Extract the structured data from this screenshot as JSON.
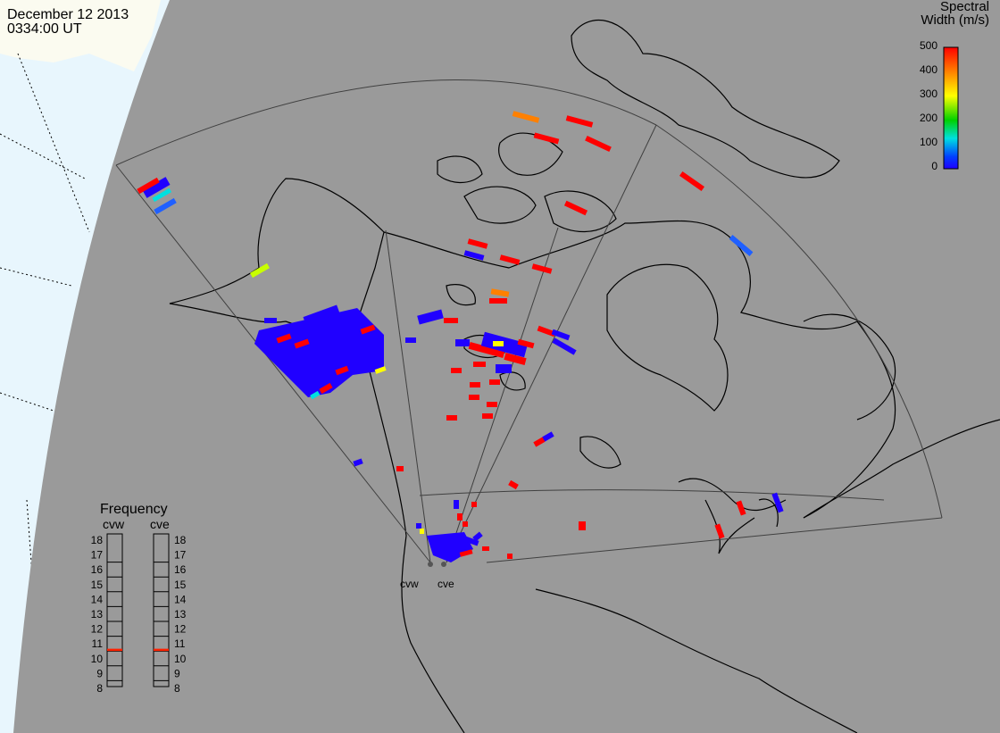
{
  "header": {
    "date": "December 12 2013",
    "time": "0334:00 UT"
  },
  "colorbar": {
    "title_line1": "Spectral",
    "title_line2": "Width (m/s)",
    "ticks": [
      "500",
      "400",
      "300",
      "200",
      "100",
      "0"
    ],
    "colors": [
      "#ff0000",
      "#ff8000",
      "#ffff00",
      "#00d000",
      "#00e0e0",
      "#0040ff",
      "#2000ff"
    ]
  },
  "frequency_panel": {
    "title": "Frequency",
    "radars": [
      "cvw",
      "cve"
    ],
    "scale": [
      "18",
      "17",
      "16",
      "15",
      "14",
      "13",
      "12",
      "11",
      "10",
      "9",
      "8"
    ],
    "cvw_mhz": 10.6,
    "cve_mhz": 10.6,
    "marker_color": "#ff2000"
  },
  "site_labels": [
    "cvw",
    "cve"
  ],
  "colors": {
    "land": "#9a9a9a",
    "ocean": "#e8f6fd",
    "polar_land": "#fbfbf0",
    "fov_line": "#404040",
    "coast": "#000000"
  }
}
